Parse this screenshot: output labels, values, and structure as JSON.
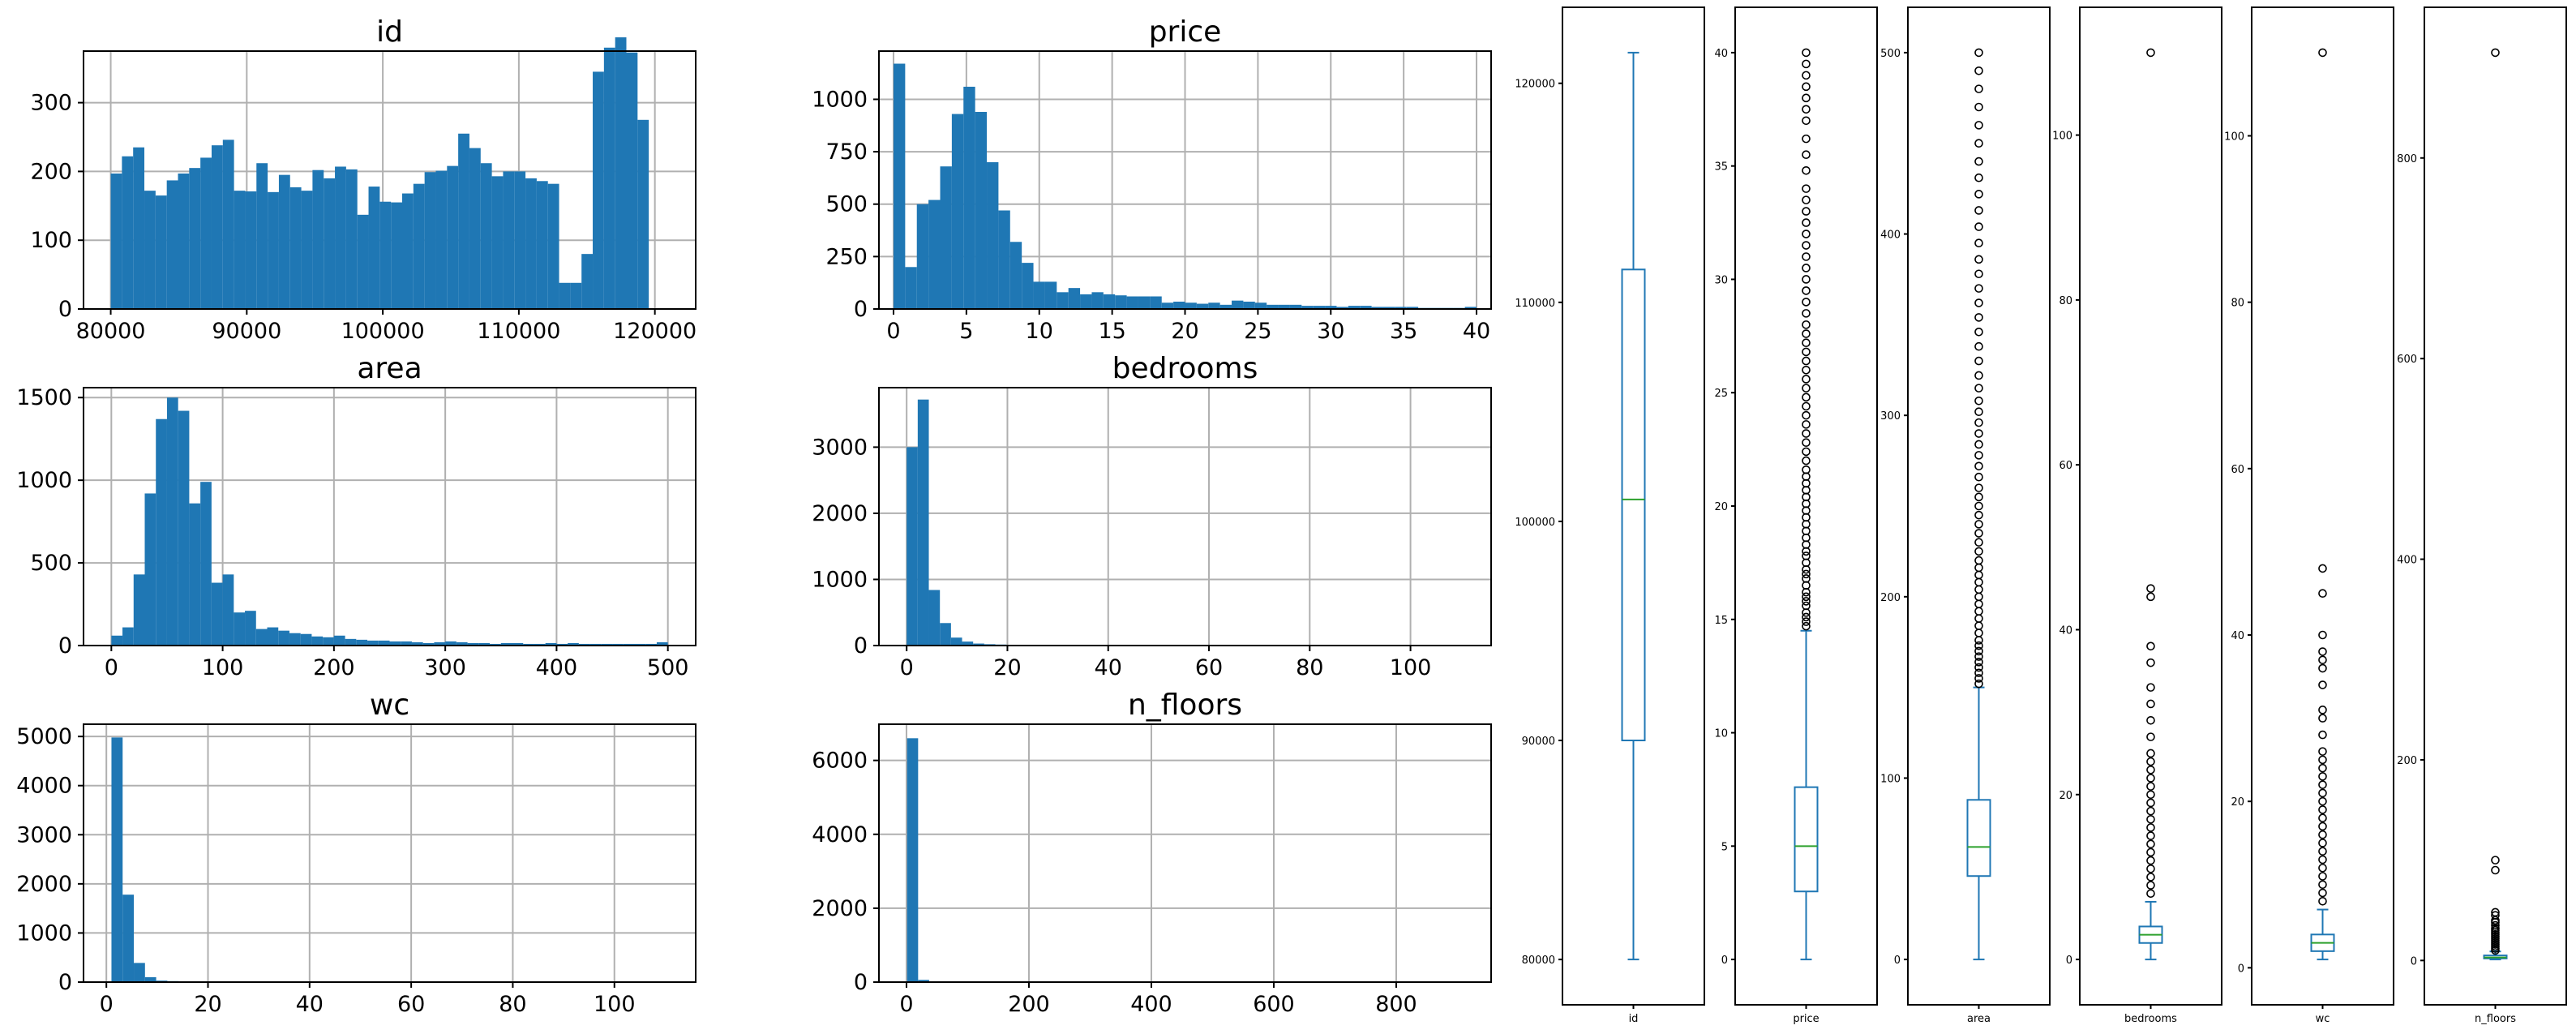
{
  "chart_data": [
    {
      "type": "bar",
      "title": "id",
      "xlim": [
        78000,
        123000
      ],
      "ylim": [
        0,
        375
      ],
      "xticks": [
        80000,
        90000,
        100000,
        110000,
        120000
      ],
      "yticks": [
        0,
        100,
        200,
        300
      ],
      "bin_start": 80000,
      "bin_width": 824,
      "values": [
        197,
        222,
        235,
        172,
        165,
        187,
        197,
        205,
        220,
        238,
        246,
        172,
        171,
        212,
        170,
        195,
        177,
        172,
        202,
        190,
        207,
        203,
        137,
        178,
        156,
        155,
        168,
        182,
        199,
        201,
        208,
        255,
        234,
        212,
        193,
        200,
        200,
        190,
        186,
        182,
        38,
        38,
        80,
        345,
        380,
        395,
        373,
        275
      ]
    },
    {
      "type": "bar",
      "title": "price",
      "xlim": [
        -1,
        41
      ],
      "ylim": [
        0,
        1230
      ],
      "xticks": [
        0,
        5,
        10,
        15,
        20,
        25,
        30,
        35,
        40
      ],
      "yticks": [
        0,
        250,
        500,
        750,
        1000
      ],
      "bin_start": 0,
      "bin_width": 0.8,
      "values": [
        1170,
        200,
        500,
        520,
        680,
        930,
        1060,
        940,
        700,
        470,
        320,
        220,
        130,
        130,
        80,
        100,
        70,
        80,
        70,
        65,
        60,
        60,
        60,
        30,
        35,
        30,
        25,
        30,
        20,
        40,
        35,
        30,
        20,
        20,
        20,
        15,
        15,
        15,
        10,
        15,
        15,
        10,
        10,
        10,
        10,
        5,
        5,
        5,
        5,
        10
      ]
    },
    {
      "type": "bar",
      "title": "area",
      "xlim": [
        -25,
        525
      ],
      "ylim": [
        0,
        1560
      ],
      "xticks": [
        0,
        100,
        200,
        300,
        400,
        500
      ],
      "yticks": [
        0,
        500,
        1000,
        1500
      ],
      "bin_start": 0,
      "bin_width": 10,
      "values": [
        60,
        110,
        430,
        920,
        1370,
        1500,
        1420,
        860,
        990,
        380,
        430,
        200,
        210,
        100,
        110,
        90,
        75,
        70,
        55,
        50,
        60,
        40,
        35,
        30,
        30,
        25,
        25,
        20,
        15,
        20,
        25,
        20,
        15,
        15,
        10,
        15,
        15,
        10,
        10,
        15,
        10,
        15,
        10,
        10,
        10,
        10,
        10,
        10,
        10,
        20
      ]
    },
    {
      "type": "bar",
      "title": "bedrooms",
      "xlim": [
        -5.5,
        116
      ],
      "ylim": [
        0,
        3900
      ],
      "xticks": [
        0,
        20,
        40,
        60,
        80,
        100
      ],
      "yticks": [
        0,
        1000,
        2000,
        3000
      ],
      "bin_start": 0,
      "bin_width": 2.2,
      "values": [
        3000,
        3720,
        840,
        340,
        120,
        60,
        30,
        20,
        15,
        10,
        5,
        5,
        5,
        5
      ]
    },
    {
      "type": "bar",
      "title": "wc",
      "xlim": [
        -4.5,
        116
      ],
      "ylim": [
        0,
        5250
      ],
      "xticks": [
        0,
        20,
        40,
        60,
        80,
        100
      ],
      "yticks": [
        0,
        1000,
        2000,
        3000,
        4000,
        5000
      ],
      "bin_start": 1,
      "bin_width": 2.2,
      "values": [
        4980,
        1780,
        390,
        100,
        30,
        20,
        10,
        5,
        5
      ]
    },
    {
      "type": "bar",
      "title": "n_floors",
      "xlim": [
        -45,
        955
      ],
      "ylim": [
        0,
        6980
      ],
      "xticks": [
        0,
        200,
        400,
        600,
        800
      ],
      "yticks": [
        0,
        2000,
        4000,
        6000
      ],
      "bin_start": 1,
      "bin_width": 18,
      "values": [
        6600,
        60
      ]
    }
  ],
  "boxplots": [
    {
      "label": "id",
      "yticks": [
        80000,
        90000,
        100000,
        110000,
        120000
      ],
      "min": 80001,
      "q1": 90000,
      "median": 101000,
      "q3": 111500,
      "max": 121400,
      "outliers": []
    },
    {
      "label": "price",
      "yticks": [
        0,
        5,
        10,
        15,
        20,
        25,
        30,
        35,
        40
      ],
      "min": 0,
      "q1": 3,
      "median": 5,
      "q3": 7.6,
      "max": 14.5,
      "outliers": [
        14.7,
        14.9,
        15.1,
        15.3,
        15.6,
        15.8,
        16.0,
        16.2,
        16.5,
        16.8,
        17.0,
        17.2,
        17.5,
        17.8,
        18.0,
        18.3,
        18.6,
        18.9,
        19.2,
        19.5,
        19.8,
        20.1,
        20.4,
        20.7,
        21.0,
        21.3,
        21.6,
        22.0,
        22.4,
        22.8,
        23.2,
        23.6,
        24.0,
        24.4,
        24.8,
        25.2,
        25.6,
        26.0,
        26.4,
        26.8,
        27.2,
        27.6,
        28.0,
        28.5,
        29.0,
        29.5,
        30.0,
        30.5,
        31.0,
        31.5,
        32.0,
        32.5,
        33.0,
        33.5,
        34.0,
        34.8,
        35.5,
        36.2,
        37.0,
        37.5,
        38.0,
        38.5,
        39.0,
        39.5,
        40.0
      ]
    },
    {
      "label": "area",
      "yticks": [
        0,
        100,
        200,
        300,
        400,
        500
      ],
      "min": 0,
      "q1": 46,
      "median": 62,
      "q3": 88,
      "max": 150,
      "outliers": [
        152,
        155,
        158,
        161,
        164,
        167,
        170,
        173,
        176,
        180,
        184,
        188,
        192,
        196,
        200,
        204,
        208,
        212,
        216,
        220,
        225,
        230,
        235,
        240,
        245,
        250,
        255,
        260,
        266,
        272,
        278,
        284,
        290,
        296,
        302,
        308,
        315,
        322,
        330,
        338,
        346,
        354,
        362,
        370,
        378,
        386,
        395,
        404,
        413,
        422,
        431,
        440,
        450,
        460,
        470,
        480,
        490,
        500
      ]
    },
    {
      "label": "bedrooms",
      "yticks": [
        0,
        20,
        40,
        60,
        80,
        100
      ],
      "min": 0,
      "q1": 2,
      "median": 3,
      "q3": 4,
      "max": 7,
      "outliers": [
        8,
        9,
        10,
        11,
        12,
        13,
        14,
        15,
        16,
        17,
        18,
        19,
        20,
        21,
        22,
        23,
        24,
        25,
        27,
        29,
        31,
        33,
        36,
        38,
        44,
        45,
        110
      ]
    },
    {
      "label": "wc",
      "yticks": [
        0,
        20,
        40,
        60,
        80,
        100
      ],
      "min": 1,
      "q1": 2,
      "median": 3,
      "q3": 4,
      "max": 7,
      "outliers": [
        8,
        9,
        10,
        11,
        12,
        13,
        14,
        15,
        16,
        17,
        18,
        19,
        20,
        21,
        22,
        23,
        24,
        25,
        26,
        28,
        30,
        31,
        34,
        36,
        37,
        38,
        40,
        45,
        48,
        110
      ]
    },
    {
      "label": "n_floors",
      "yticks": [
        0,
        200,
        400,
        600,
        800
      ],
      "min": 1,
      "q1": 2,
      "median": 3,
      "q3": 5,
      "max": 9,
      "outliers": [
        10,
        12,
        14,
        16,
        18,
        20,
        22,
        24,
        26,
        28,
        30,
        32,
        35,
        38,
        40,
        45,
        48,
        90,
        100,
        905
      ]
    }
  ]
}
